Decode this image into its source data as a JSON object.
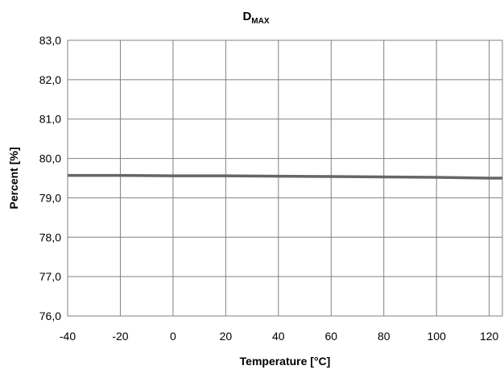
{
  "chart_data": {
    "type": "line",
    "title": "D",
    "title_subscript": "MAX",
    "xlabel": "Temperature [°C]",
    "ylabel": "Percent [%]",
    "xlim": [
      -40,
      125
    ],
    "ylim": [
      76.0,
      83.0
    ],
    "x_ticks": [
      -40,
      -20,
      0,
      20,
      40,
      60,
      80,
      100,
      120
    ],
    "x_tick_labels": [
      "-40",
      "-20",
      "0",
      "20",
      "40",
      "60",
      "80",
      "100",
      "120"
    ],
    "y_ticks": [
      76.0,
      77.0,
      78.0,
      79.0,
      80.0,
      81.0,
      82.0,
      83.0
    ],
    "y_tick_labels": [
      "76,0",
      "77,0",
      "78,0",
      "79,0",
      "80,0",
      "81,0",
      "82,0",
      "83,0"
    ],
    "grid": true,
    "legend": "none",
    "series": [
      {
        "color": "#666666",
        "x": [
          -40,
          -20,
          0,
          20,
          40,
          60,
          80,
          100,
          120,
          125
        ],
        "y": [
          79.57,
          79.57,
          79.56,
          79.56,
          79.55,
          79.54,
          79.53,
          79.52,
          79.5,
          79.5
        ]
      }
    ]
  }
}
